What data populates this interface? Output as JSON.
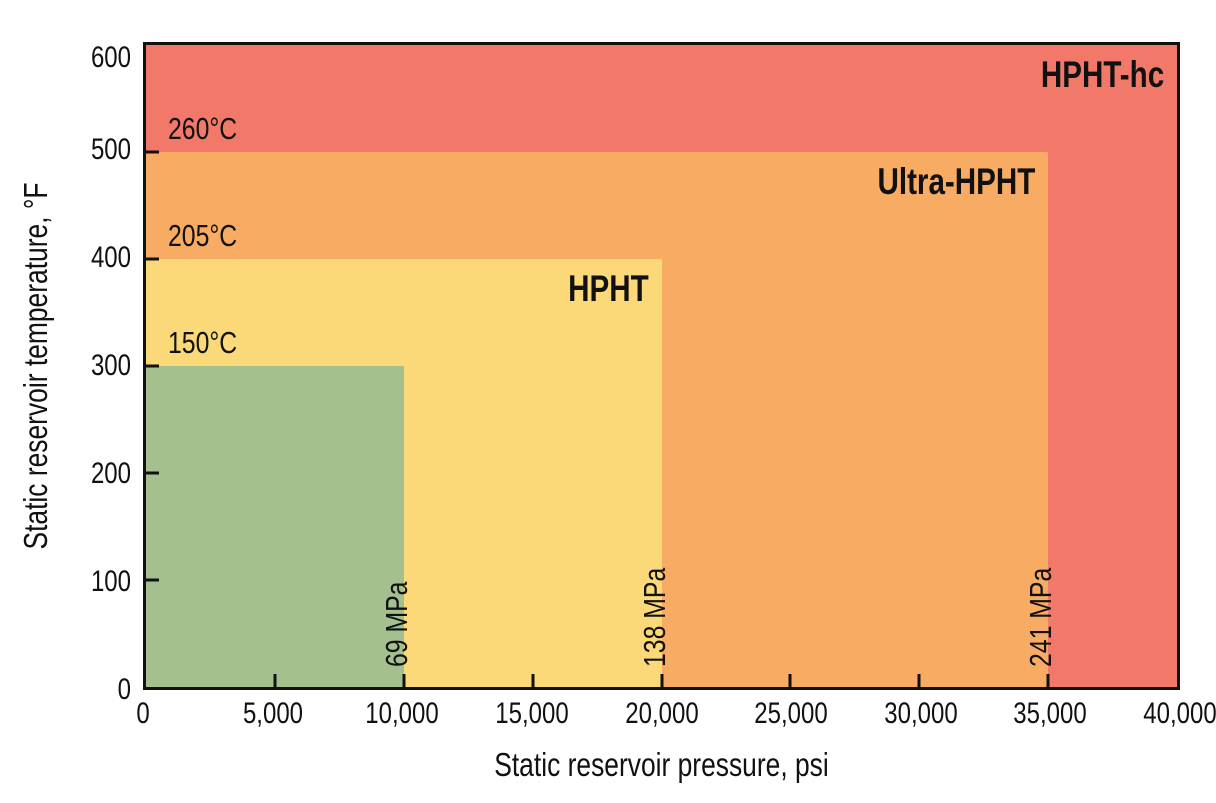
{
  "chart_data": {
    "type": "area",
    "subtype": "nested-classification-zones",
    "title": "",
    "xlabel": "Static reservoir pressure, psi",
    "ylabel": "Static reservoir temperature, °F",
    "xlim": [
      0,
      40000
    ],
    "ylim": [
      0,
      600
    ],
    "grid": false,
    "legend": "none",
    "x_ticks": [
      0,
      5000,
      10000,
      15000,
      20000,
      25000,
      30000,
      35000,
      40000
    ],
    "x_tick_labels": [
      "0",
      "5,000",
      "10,000",
      "15,000",
      "20,000",
      "25,000",
      "30,000",
      "35,000",
      "40,000"
    ],
    "y_ticks": [
      0,
      100,
      200,
      300,
      400,
      500,
      600
    ],
    "y_tick_labels": [
      "0",
      "100",
      "200",
      "300",
      "400",
      "500",
      "600"
    ],
    "axis_color": "#111111",
    "zones": [
      {
        "name": "",
        "pressure_psi_max": 10000,
        "temp_f_max": 300,
        "temp_c_at_top": "150°C",
        "pressure_mpa_at_right": "69 MPa",
        "color": "#a4c08e"
      },
      {
        "name": "HPHT",
        "pressure_psi_max": 20000,
        "temp_f_max": 400,
        "temp_c_at_top": "205°C",
        "pressure_mpa_at_right": "138 MPa",
        "color": "#fcd978"
      },
      {
        "name": "Ultra-HPHT",
        "pressure_psi_max": 35000,
        "temp_f_max": 500,
        "temp_c_at_top": "260°C",
        "pressure_mpa_at_right": "241 MPa",
        "color": "#f8ab63"
      },
      {
        "name": "HPHT-hc",
        "pressure_psi_max": 40000,
        "temp_f_max": 600,
        "temp_c_at_top": "",
        "pressure_mpa_at_right": "",
        "color": "#f2796a"
      }
    ]
  }
}
